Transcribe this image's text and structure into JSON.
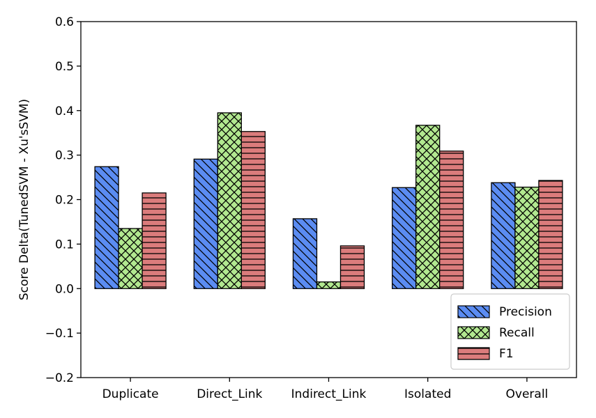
{
  "chart_data": {
    "type": "bar",
    "title": "",
    "xlabel": "",
    "ylabel": "Score Delta(TunedSVM - Xu'sSVM)",
    "categories": [
      "Duplicate",
      "Direct_Link",
      "Indirect_Link",
      "Isolated",
      "Overall"
    ],
    "ylim": [
      -0.2,
      0.6
    ],
    "yticks": [
      -0.2,
      -0.1,
      0.0,
      0.1,
      0.2,
      0.3,
      0.4,
      0.5,
      0.6
    ],
    "ytick_labels": [
      "−0.2",
      "−0.1",
      "0.0",
      "0.1",
      "0.2",
      "0.3",
      "0.4",
      "0.5",
      "0.6"
    ],
    "grid": false,
    "legend_position": "lower-right",
    "series": [
      {
        "name": "Precision",
        "values": [
          0.274,
          0.291,
          0.157,
          0.227,
          0.238
        ],
        "color": "#5b8cf2",
        "hatch": "diagonal-backslash"
      },
      {
        "name": "Recall",
        "values": [
          0.135,
          0.395,
          0.015,
          0.367,
          0.228
        ],
        "color": "#b2e890",
        "hatch": "crosshatch"
      },
      {
        "name": "F1",
        "values": [
          0.215,
          0.353,
          0.096,
          0.309,
          0.243
        ],
        "color": "#db7c7c",
        "hatch": "horizontal"
      }
    ]
  }
}
